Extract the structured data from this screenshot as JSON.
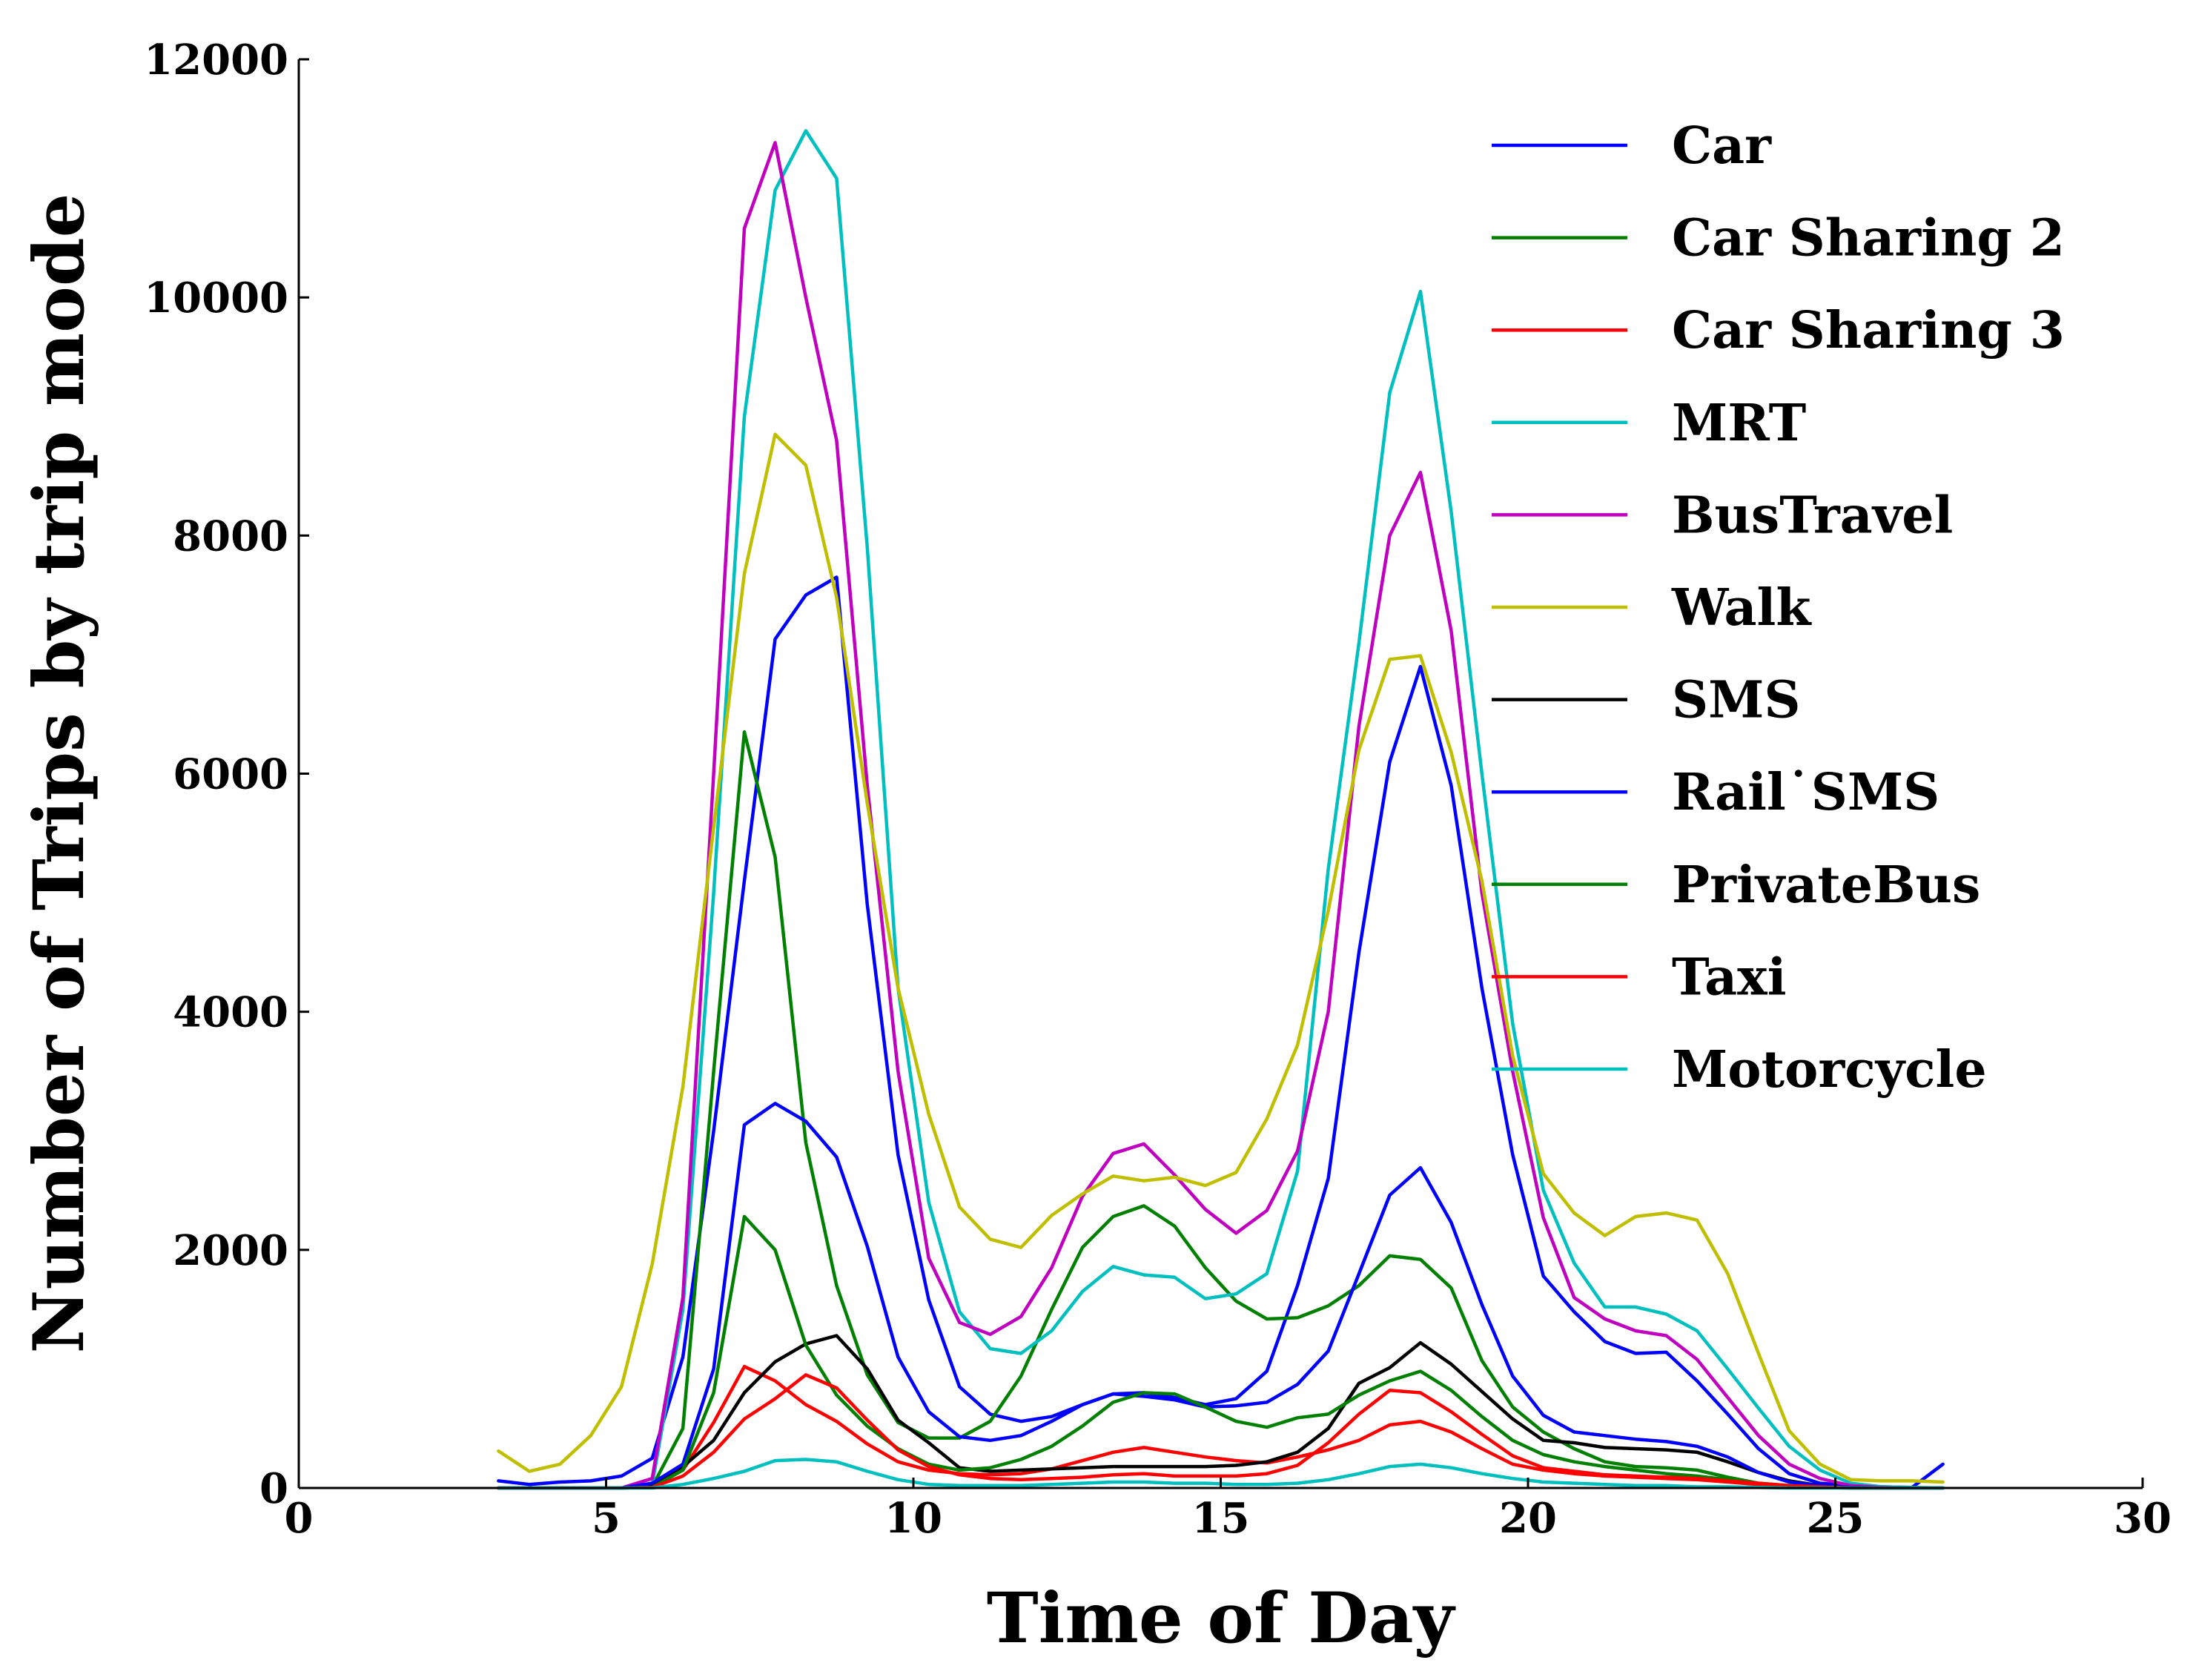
{
  "chart_data": {
    "type": "line",
    "xlabel": "Time of Day",
    "ylabel": "Number of Trips by trip mode",
    "xlim": [
      0,
      30
    ],
    "ylim": [
      0,
      12000
    ],
    "xticks": [
      "0",
      "5",
      "10",
      "15",
      "20",
      "25",
      "30"
    ],
    "yticks": [
      "0",
      "2000",
      "4000",
      "6000",
      "8000",
      "10000",
      "12000"
    ],
    "grid": false,
    "legend_position": "top-right",
    "x": [
      3.25,
      3.75,
      4.25,
      4.75,
      5.25,
      5.75,
      6.25,
      6.75,
      7.25,
      7.75,
      8.25,
      8.75,
      9.25,
      9.75,
      10.25,
      10.75,
      11.25,
      11.75,
      12.25,
      12.75,
      13.25,
      13.75,
      14.25,
      14.75,
      15.25,
      15.75,
      16.25,
      16.75,
      17.25,
      17.75,
      18.25,
      18.75,
      19.25,
      19.75,
      20.25,
      20.75,
      21.25,
      21.75,
      22.25,
      22.75,
      23.25,
      23.75,
      24.25,
      24.75,
      25.25,
      25.75,
      26.25,
      26.75
    ],
    "series": [
      {
        "name": "Car",
        "color": "#0000ff",
        "values": [
          60,
          30,
          50,
          60,
          100,
          250,
          1100,
          3000,
          5100,
          7130,
          7500,
          7650,
          4900,
          2800,
          1580,
          850,
          620,
          560,
          600,
          700,
          790,
          800,
          760,
          700,
          750,
          980,
          1700,
          2600,
          4500,
          6100,
          6900,
          5900,
          4200,
          2800,
          1780,
          1480,
          1230,
          1130,
          1140,
          900,
          620,
          330,
          120,
          40,
          20,
          10,
          5,
          200
        ]
      },
      {
        "name": "Car Sharing 2",
        "color": "#008000",
        "values": [
          0,
          0,
          0,
          0,
          0,
          10,
          500,
          3500,
          6350,
          5300,
          2900,
          1700,
          950,
          550,
          420,
          420,
          560,
          940,
          1500,
          2020,
          2280,
          2370,
          2200,
          1850,
          1570,
          1420,
          1430,
          1530,
          1700,
          1950,
          1920,
          1680,
          1070,
          680,
          470,
          330,
          220,
          180,
          170,
          150,
          90,
          40,
          10,
          5,
          0,
          0,
          0,
          0
        ]
      },
      {
        "name": "Car Sharing 3",
        "color": "#ff0000",
        "values": [
          0,
          0,
          0,
          0,
          0,
          10,
          150,
          550,
          1020,
          900,
          700,
          560,
          370,
          220,
          150,
          120,
          110,
          120,
          160,
          230,
          300,
          340,
          300,
          260,
          230,
          210,
          260,
          320,
          400,
          530,
          560,
          470,
          330,
          200,
          150,
          120,
          100,
          90,
          80,
          70,
          50,
          30,
          10,
          5,
          0,
          0,
          0,
          0
        ]
      },
      {
        "name": "MRT",
        "color": "#00bfbf",
        "values": [
          0,
          0,
          0,
          0,
          0,
          30,
          1500,
          5000,
          9000,
          10900,
          11400,
          11000,
          7900,
          4200,
          2400,
          1480,
          1170,
          1130,
          1320,
          1650,
          1860,
          1790,
          1770,
          1590,
          1630,
          1800,
          2660,
          5200,
          7100,
          9200,
          10050,
          8200,
          6000,
          3900,
          2500,
          1890,
          1520,
          1520,
          1460,
          1320,
          1000,
          670,
          350,
          150,
          40,
          10,
          5,
          0
        ]
      },
      {
        "name": "BusTravel",
        "color": "#bf00bf",
        "values": [
          0,
          0,
          0,
          0,
          0,
          80,
          1600,
          6000,
          10580,
          11300,
          10000,
          8800,
          5900,
          3500,
          1930,
          1390,
          1290,
          1440,
          1850,
          2450,
          2810,
          2890,
          2630,
          2340,
          2140,
          2330,
          2830,
          4000,
          6400,
          8000,
          8530,
          7200,
          5000,
          3500,
          2270,
          1600,
          1420,
          1320,
          1280,
          1080,
          760,
          440,
          200,
          80,
          20,
          5,
          0,
          0
        ]
      },
      {
        "name": "Walk",
        "color": "#bfbf00",
        "values": [
          310,
          140,
          200,
          440,
          850,
          1880,
          3370,
          5550,
          7680,
          8850,
          8590,
          7480,
          5750,
          4200,
          3140,
          2360,
          2090,
          2020,
          2290,
          2470,
          2620,
          2580,
          2610,
          2540,
          2650,
          3100,
          3720,
          4850,
          6200,
          6960,
          6990,
          6180,
          5100,
          3630,
          2640,
          2310,
          2120,
          2280,
          2310,
          2250,
          1800,
          1130,
          480,
          200,
          70,
          60,
          60,
          50
        ]
      },
      {
        "name": "SMS",
        "color": "#000000",
        "values": [
          0,
          0,
          0,
          0,
          0,
          20,
          180,
          400,
          800,
          1060,
          1210,
          1280,
          1000,
          570,
          380,
          170,
          140,
          150,
          160,
          170,
          180,
          180,
          180,
          180,
          190,
          220,
          300,
          500,
          880,
          1010,
          1220,
          1040,
          810,
          580,
          400,
          380,
          340,
          330,
          320,
          300,
          220,
          130,
          60,
          20,
          5,
          0,
          0,
          0
        ]
      },
      {
        "name": "Rail SMS",
        "color": "#0000ff",
        "values": [
          0,
          0,
          0,
          0,
          0,
          40,
          200,
          1000,
          3050,
          3230,
          3080,
          2780,
          2030,
          1100,
          640,
          430,
          400,
          440,
          560,
          700,
          790,
          770,
          740,
          680,
          690,
          720,
          870,
          1150,
          1800,
          2460,
          2690,
          2230,
          1540,
          940,
          610,
          470,
          440,
          410,
          390,
          350,
          260,
          130,
          50,
          20,
          5,
          0,
          0,
          0
        ]
      },
      {
        "name": "PrivateBus",
        "color": "#008000",
        "values": [
          0,
          0,
          0,
          0,
          0,
          5,
          150,
          800,
          2280,
          2000,
          1200,
          780,
          520,
          330,
          200,
          150,
          170,
          240,
          350,
          520,
          720,
          800,
          790,
          680,
          560,
          510,
          590,
          620,
          780,
          900,
          980,
          820,
          600,
          400,
          280,
          220,
          180,
          150,
          120,
          100,
          70,
          40,
          20,
          5,
          0,
          0,
          0,
          0
        ]
      },
      {
        "name": "Taxi",
        "color": "#ff0000",
        "values": [
          0,
          0,
          0,
          0,
          0,
          5,
          100,
          300,
          580,
          750,
          950,
          840,
          570,
          320,
          180,
          110,
          80,
          70,
          80,
          90,
          110,
          120,
          100,
          100,
          100,
          120,
          190,
          380,
          620,
          820,
          800,
          640,
          450,
          270,
          170,
          140,
          110,
          100,
          90,
          80,
          60,
          40,
          20,
          10,
          0,
          0,
          0,
          0
        ]
      },
      {
        "name": "Motorcycle",
        "color": "#00bfbf",
        "values": [
          0,
          0,
          0,
          0,
          0,
          0,
          30,
          80,
          140,
          230,
          240,
          220,
          140,
          70,
          30,
          20,
          20,
          20,
          30,
          40,
          50,
          50,
          40,
          40,
          30,
          30,
          40,
          70,
          120,
          180,
          200,
          170,
          120,
          80,
          50,
          40,
          30,
          20,
          20,
          10,
          10,
          5,
          0,
          0,
          0,
          0,
          0,
          0
        ]
      }
    ],
    "legend_labels": [
      "Car",
      "Car Sharing 2",
      "Car Sharing 3",
      "MRT",
      "BusTravel",
      "Walk",
      "SMS",
      "Rail˙SMS",
      "PrivateBus",
      "Taxi",
      "Motorcycle"
    ]
  }
}
